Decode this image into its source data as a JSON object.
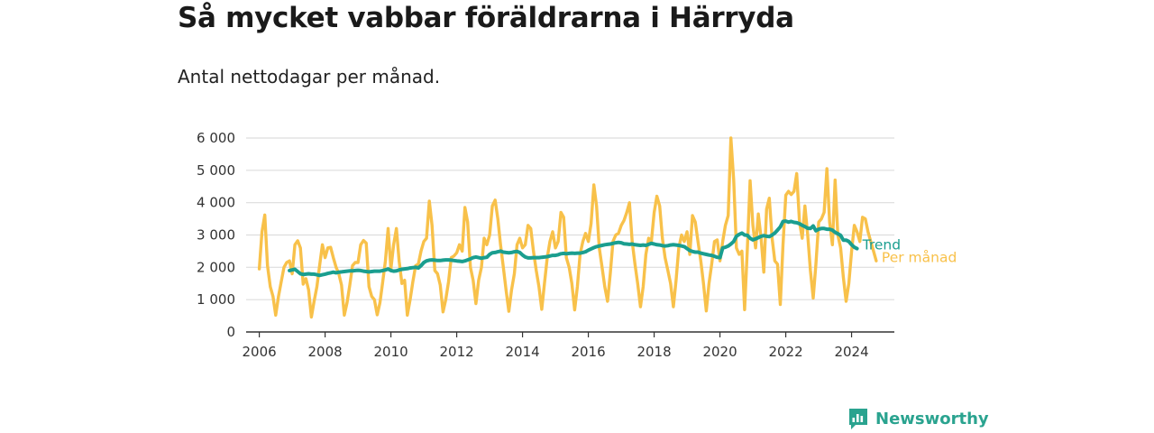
{
  "title": "Så mycket vabbar föräldrarna i Härryda",
  "subtitle": "Antal nettodagar per månad.",
  "brand": {
    "name": "Newsworthy",
    "color": "#2aa38f"
  },
  "colors": {
    "trend": "#1a9e8f",
    "monthly": "#f8c14a",
    "grid": "#dddddd",
    "axis": "#333333"
  },
  "chart_data": {
    "type": "line",
    "xlim": [
      2005.6,
      2025.3
    ],
    "ylim": [
      0,
      6000
    ],
    "x_ticks": [
      2006,
      2008,
      2010,
      2012,
      2014,
      2016,
      2018,
      2020,
      2022,
      2024
    ],
    "x_tick_labels": [
      "2006",
      "2008",
      "2010",
      "2012",
      "2014",
      "2016",
      "2018",
      "2020",
      "2022",
      "2024"
    ],
    "y_ticks": [
      0,
      1000,
      2000,
      3000,
      4000,
      5000,
      6000
    ],
    "y_tick_labels": [
      "0",
      "1 000",
      "2 000",
      "3 000",
      "4 000",
      "5 000",
      "6 000"
    ],
    "grid": "horizontal",
    "legend": "right, at line ends",
    "series": [
      {
        "name": "Per månad",
        "color": "#f8c14a",
        "start": "2006-01",
        "values": [
          1950,
          3100,
          3620,
          2050,
          1400,
          1100,
          520,
          1100,
          1550,
          2000,
          2150,
          2200,
          1800,
          2700,
          2820,
          2600,
          1480,
          1650,
          1300,
          460,
          950,
          1400,
          2050,
          2700,
          2300,
          2600,
          2620,
          2300,
          2000,
          1800,
          1450,
          520,
          900,
          1450,
          2050,
          2150,
          2150,
          2700,
          2830,
          2750,
          1400,
          1100,
          1000,
          530,
          900,
          1550,
          2200,
          3200,
          1950,
          2700,
          3200,
          2200,
          1500,
          1600,
          520,
          1000,
          1550,
          2050,
          2100,
          2500,
          2800,
          2900,
          4050,
          3300,
          1900,
          1800,
          1450,
          620,
          1000,
          1550,
          2300,
          2350,
          2450,
          2700,
          2500,
          3850,
          3400,
          2000,
          1600,
          880,
          1600,
          2000,
          2900,
          2700,
          3000,
          3900,
          4080,
          3500,
          2700,
          2000,
          1300,
          640,
          1300,
          1800,
          2700,
          2900,
          2600,
          2700,
          3300,
          3200,
          2500,
          1900,
          1400,
          700,
          1500,
          2300,
          2800,
          3100,
          2600,
          2800,
          3700,
          3550,
          2300,
          2000,
          1500,
          680,
          1400,
          2400,
          2800,
          3050,
          2800,
          3350,
          4550,
          3900,
          2600,
          2000,
          1400,
          950,
          1800,
          2800,
          3000,
          3050,
          3300,
          3450,
          3700,
          4000,
          2800,
          2100,
          1500,
          780,
          1400,
          2400,
          2900,
          2800,
          3700,
          4200,
          3900,
          2900,
          2300,
          1900,
          1500,
          780,
          1600,
          2600,
          3000,
          2800,
          3100,
          2400,
          3600,
          3400,
          2800,
          2200,
          1500,
          650,
          1500,
          2100,
          2800,
          2850,
          2200,
          2800,
          3300,
          3600,
          6000,
          4700,
          2600,
          2400,
          2500,
          690,
          2600,
          4680,
          3300,
          2600,
          3650,
          2900,
          1850,
          3800,
          4140,
          2900,
          2200,
          2100,
          850,
          2700,
          4230,
          4350,
          4250,
          4350,
          4900,
          3400,
          2900,
          3900,
          3000,
          1900,
          1050,
          2100,
          3400,
          3500,
          3700,
          5050,
          3400,
          2700,
          4700,
          3000,
          2600,
          1700,
          950,
          1500,
          2500,
          3300,
          3100,
          2800,
          3550,
          3500,
          3100,
          2800,
          2500,
          2200
        ]
      },
      {
        "name": "Trend",
        "color": "#1a9e8f",
        "start": "2006-12",
        "values": [
          1900,
          1920,
          1940,
          1870,
          1800,
          1780,
          1790,
          1800,
          1790,
          1790,
          1770,
          1750,
          1770,
          1790,
          1810,
          1830,
          1850,
          1830,
          1850,
          1860,
          1870,
          1880,
          1890,
          1890,
          1900,
          1910,
          1900,
          1880,
          1870,
          1860,
          1870,
          1880,
          1880,
          1880,
          1900,
          1920,
          1950,
          1900,
          1880,
          1890,
          1920,
          1940,
          1950,
          1960,
          1980,
          1990,
          2000,
          1980,
          2050,
          2150,
          2200,
          2220,
          2230,
          2220,
          2210,
          2210,
          2220,
          2230,
          2230,
          2220,
          2210,
          2200,
          2190,
          2180,
          2200,
          2230,
          2260,
          2300,
          2320,
          2300,
          2280,
          2300,
          2310,
          2400,
          2450,
          2460,
          2480,
          2500,
          2470,
          2460,
          2450,
          2460,
          2480,
          2490,
          2460,
          2380,
          2320,
          2290,
          2290,
          2300,
          2300,
          2300,
          2310,
          2320,
          2330,
          2350,
          2370,
          2370,
          2390,
          2420,
          2430,
          2420,
          2430,
          2440,
          2430,
          2440,
          2440,
          2460,
          2480,
          2530,
          2570,
          2610,
          2640,
          2660,
          2680,
          2700,
          2710,
          2720,
          2740,
          2760,
          2770,
          2760,
          2730,
          2720,
          2710,
          2720,
          2700,
          2690,
          2680,
          2690,
          2680,
          2710,
          2740,
          2720,
          2700,
          2690,
          2670,
          2660,
          2670,
          2690,
          2700,
          2690,
          2680,
          2660,
          2640,
          2580,
          2520,
          2490,
          2470,
          2470,
          2440,
          2420,
          2400,
          2380,
          2370,
          2340,
          2310,
          2300,
          2600,
          2620,
          2660,
          2720,
          2800,
          2960,
          3020,
          3060,
          3000,
          2990,
          2900,
          2850,
          2880,
          2920,
          2960,
          2980,
          2960,
          2950,
          3000,
          3060,
          3150,
          3250,
          3420,
          3430,
          3400,
          3420,
          3390,
          3380,
          3350,
          3300,
          3260,
          3210,
          3200,
          3280,
          3130,
          3180,
          3200,
          3200,
          3180,
          3180,
          3150,
          3080,
          3040,
          2990,
          2840,
          2840,
          2800,
          2700,
          2620,
          2580
        ]
      }
    ]
  }
}
